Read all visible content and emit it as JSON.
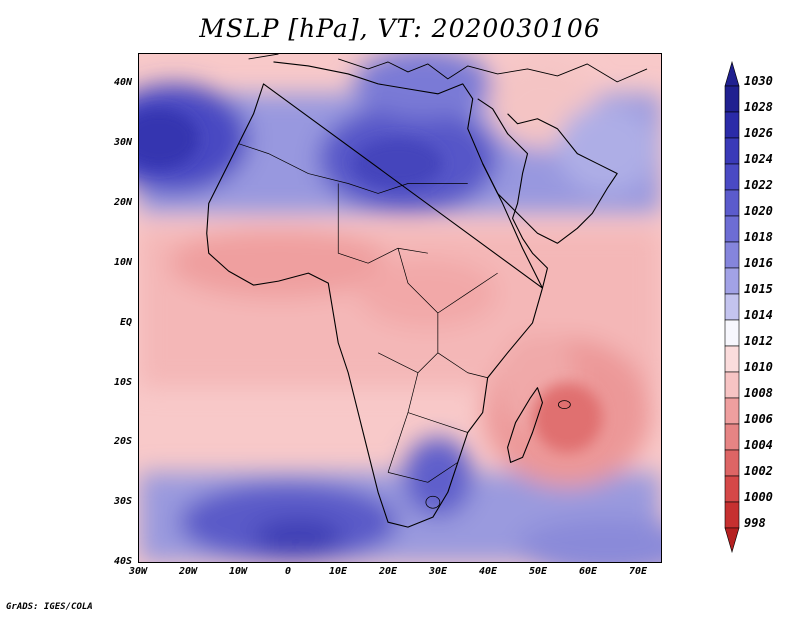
{
  "title": "MSLP [hPa],  VT: 2020030106",
  "credit": "GrADS: IGES/COLA",
  "axes": {
    "y_labels": [
      "40N",
      "30N",
      "20N",
      "10N",
      "EQ",
      "10S",
      "20S",
      "30S",
      "40S"
    ],
    "x_labels": [
      "30W",
      "20W",
      "10W",
      "0",
      "10E",
      "20E",
      "30E",
      "40E",
      "50E",
      "60E",
      "70E"
    ]
  },
  "colorbar": {
    "levels": [
      "1030",
      "1028",
      "1026",
      "1024",
      "1022",
      "1020",
      "1018",
      "1016",
      "1015",
      "1014",
      "1012",
      "1010",
      "1008",
      "1006",
      "1004",
      "1002",
      "1000",
      "998"
    ],
    "colors": [
      "#202090",
      "#2b2ba8",
      "#3a3ab8",
      "#4a4ac4",
      "#5b5bcc",
      "#6d6dd4",
      "#8585dc",
      "#a2a2e6",
      "#c4c4ef",
      "#f7f7fd",
      "#fbdcdc",
      "#f7c4c4",
      "#ef9f9f",
      "#e68484",
      "#dd6565",
      "#d54848",
      "#c63030",
      "#b52020"
    ]
  },
  "colors": {
    "high_deep": "#4848c0",
    "high_mid": "#7b7bd6",
    "high_light": "#b5b5e8",
    "neutral": "#f7f5fb",
    "low_light": "#fbd9d9",
    "low_mid": "#f4b3b3",
    "low_deep": "#e88a8a"
  }
}
